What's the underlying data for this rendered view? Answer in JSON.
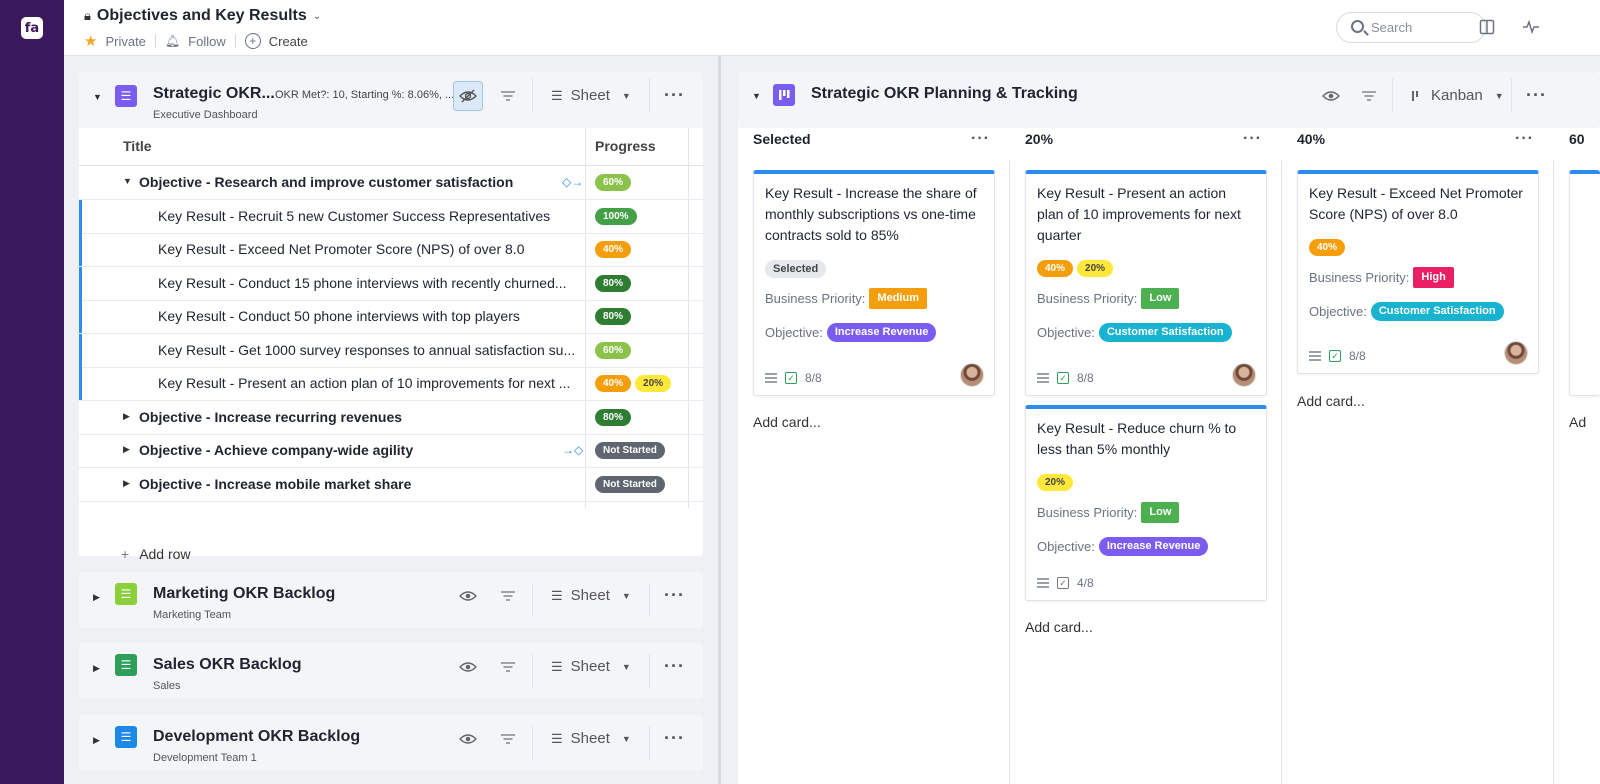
{
  "app": {
    "logo_text": "fa"
  },
  "header": {
    "title": "Objectives and Key Results",
    "private_label": "Private",
    "follow_label": "Follow",
    "create_label": "Create",
    "search_placeholder": "Search"
  },
  "sheet_panel": {
    "title": "Strategic OKR...",
    "filter_summary": "OKR Met?: 10, Starting %: 8.06%, ...",
    "subtitle": "Executive Dashboard",
    "view_label": "Sheet",
    "columns": {
      "title": "Title",
      "progress": "Progress"
    },
    "rows": [
      {
        "text": "Objective - Research and improve customer satisfaction",
        "type": "objective",
        "expanded": true,
        "pills": [
          {
            "label": "60%",
            "color": "#8bc34a"
          }
        ]
      },
      {
        "text": "Key Result - Recruit 5 new Customer Success Representatives",
        "type": "kr",
        "pills": [
          {
            "label": "100%",
            "color": "#43a047"
          }
        ]
      },
      {
        "text": "Key Result - Exceed Net Promoter Score (NPS) of over 8.0",
        "type": "kr",
        "pills": [
          {
            "label": "40%",
            "color": "#f59e0b"
          }
        ]
      },
      {
        "text": "Key Result - Conduct 15 phone interviews with recently churned...",
        "type": "kr",
        "pills": [
          {
            "label": "80%",
            "color": "#2e7d32"
          }
        ]
      },
      {
        "text": "Key Result - Conduct 50 phone interviews with top players",
        "type": "kr",
        "pills": [
          {
            "label": "80%",
            "color": "#2e7d32"
          }
        ]
      },
      {
        "text": "Key Result - Get 1000 survey responses to annual satisfaction su...",
        "type": "kr",
        "pills": [
          {
            "label": "60%",
            "color": "#8bc34a"
          }
        ]
      },
      {
        "text": "Key Result - Present an action plan of 10 improvements for next ...",
        "type": "kr",
        "pills": [
          {
            "label": "40%",
            "color": "#f59e0b"
          },
          {
            "label": "20%",
            "color": "#ffe83a"
          }
        ]
      },
      {
        "text": "Objective - Increase recurring revenues",
        "type": "objective",
        "expanded": false,
        "pills": [
          {
            "label": "80%",
            "color": "#2e7d32"
          }
        ]
      },
      {
        "text": "Objective - Achieve company-wide agility",
        "type": "objective",
        "expanded": false,
        "pills": [
          {
            "label": "Not Started",
            "color": "#5f6670"
          }
        ]
      },
      {
        "text": "Objective - Increase mobile market share",
        "type": "objective",
        "expanded": false,
        "pills": [
          {
            "label": "Not Started",
            "color": "#5f6670"
          }
        ]
      }
    ],
    "add_row_label": "Add row"
  },
  "collapsed_panels": [
    {
      "title": "Marketing OKR Backlog",
      "subtitle": "Marketing Team",
      "view_label": "Sheet",
      "icon_color": "#8bd03c"
    },
    {
      "title": "Sales OKR Backlog",
      "subtitle": "Sales",
      "view_label": "Sheet",
      "icon_color": "#2e9e5b"
    },
    {
      "title": "Development OKR Backlog",
      "subtitle": "Development Team 1",
      "view_label": "Sheet",
      "icon_color": "#1e88e5"
    }
  ],
  "kanban": {
    "title": "Strategic OKR Planning & Tracking",
    "view_label": "Kanban",
    "columns": [
      {
        "name": "Selected"
      },
      {
        "name": "20%"
      },
      {
        "name": "40%"
      },
      {
        "name": "60"
      }
    ],
    "field_labels": {
      "priority": "Business Priority:",
      "objective": "Objective:"
    },
    "cards": {
      "c1": {
        "title": "Key Result - Increase the share of monthly subscriptions vs one-time contracts sold to 85%",
        "status": "Selected",
        "priority": "Medium",
        "objective": "Increase Revenue",
        "checks": "8/8"
      },
      "c2": {
        "title": "Key Result - Present an action plan of 10 improvements for next quarter",
        "pill1": "40%",
        "pill2": "20%",
        "priority": "Low",
        "objective": "Customer Satisfaction",
        "checks": "8/8"
      },
      "c3": {
        "title": "Key Result - Reduce churn % to less than 5% monthly",
        "pill1": "20%",
        "priority": "Low",
        "objective": "Increase Revenue",
        "checks": "4/8"
      },
      "c4": {
        "title": "Key Result - Exceed Net Promoter Score (NPS) of over 8.0",
        "pill1": "40%",
        "priority": "High",
        "objective": "Customer Satisfaction",
        "checks": "8/8"
      }
    },
    "add_card_label": "Add card...",
    "add_card_cut": "Ad"
  },
  "colors": {
    "accent": "#2d8cf0",
    "brand": "#3a1a5c",
    "medium": "#f59e0b",
    "low": "#4caf50",
    "high": "#e91e63",
    "increase_revenue": "#7b5cf0",
    "customer_satisfaction": "#17b3d1"
  }
}
